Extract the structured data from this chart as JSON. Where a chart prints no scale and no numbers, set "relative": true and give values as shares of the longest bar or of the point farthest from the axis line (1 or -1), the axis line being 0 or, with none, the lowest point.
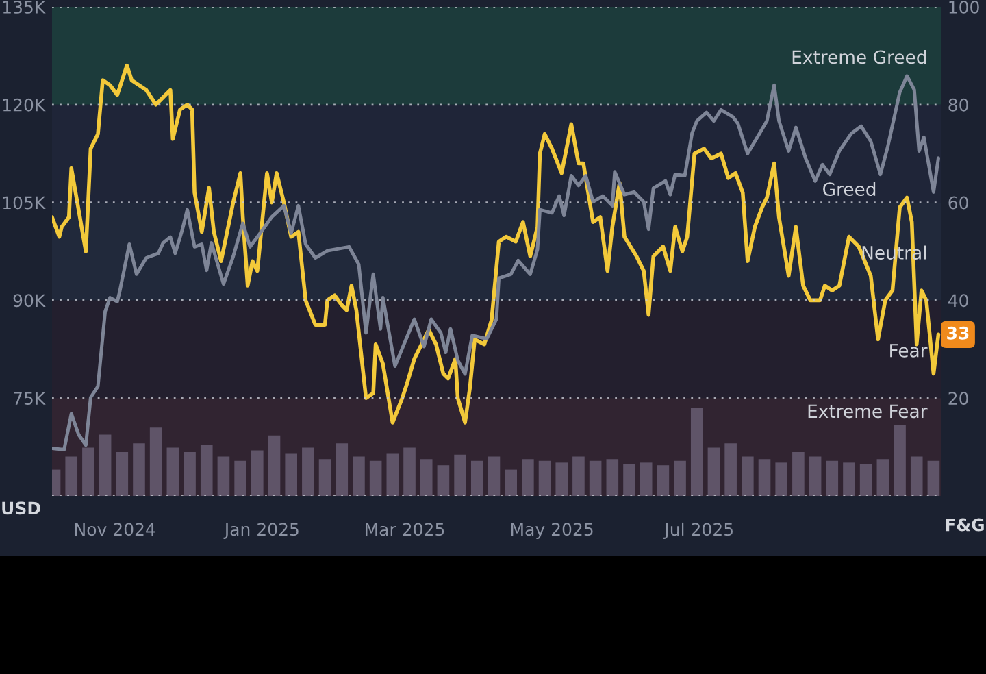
{
  "chart_data": [
    {
      "type": "line",
      "xlim": [
        "2024-10-06",
        "2025-10-09"
      ],
      "xticks": [
        {
          "value": "2024-11-01",
          "label": "Nov 2024"
        },
        {
          "value": "2025-01-01",
          "label": "Jan 2025"
        },
        {
          "value": "2025-03-01",
          "label": "Mar 2025"
        },
        {
          "value": "2025-05-01",
          "label": "May 2025"
        },
        {
          "value": "2025-07-01",
          "label": "Jul 2025"
        }
      ],
      "ylabel": "USD",
      "y2label": "F&G",
      "ylim": [
        60000,
        135000
      ],
      "yticks": [
        {
          "value": 60000,
          "label": null
        },
        {
          "value": 75000,
          "label": "75K"
        },
        {
          "value": 90000,
          "label": "90K"
        },
        {
          "value": 105000,
          "label": "105K"
        },
        {
          "value": 120000,
          "label": "120K"
        },
        {
          "value": 135000,
          "label": "135K"
        }
      ],
      "y2lim": [
        0,
        100
      ],
      "y2ticks": [
        {
          "value": 0,
          "label": null
        },
        20,
        40,
        60,
        80,
        100
      ],
      "grid": "y",
      "bands": [
        {
          "axis": "y2",
          "from": 80,
          "to": 100,
          "label": "Extreme Greed",
          "color": "#1c3f3d"
        },
        {
          "axis": "y2",
          "from": 60,
          "to": 80,
          "label": "Greed",
          "color": "#20263a"
        },
        {
          "axis": "y2",
          "from": 40,
          "to": 60,
          "label": "Neutral",
          "color": "#222a3d"
        },
        {
          "axis": "y2",
          "from": 20,
          "to": 40,
          "label": "Fear",
          "color": "#251f2e"
        },
        {
          "axis": "y2",
          "from": 0,
          "to": 20,
          "label": "Extreme Fear",
          "color": "#352431"
        }
      ],
      "series": [
        {
          "color": "#7e8597",
          "x": [
            "2024-10-06",
            "2024-10-11",
            "2024-10-14",
            "2024-10-17",
            "2024-10-20",
            "2024-10-22",
            "2024-10-25",
            "2024-10-28",
            "2024-10-30",
            "2024-11-02",
            "2024-11-03",
            "2024-11-07",
            "2024-11-10",
            "2024-11-14",
            "2024-11-19",
            "2024-11-21",
            "2024-11-24",
            "2024-11-26",
            "2024-11-29",
            "2024-12-01",
            "2024-12-04",
            "2024-12-07",
            "2024-12-09",
            "2024-12-11",
            "2024-12-16",
            "2024-12-20",
            "2024-12-24",
            "2024-12-27",
            "2025-01-01",
            "2025-01-05",
            "2025-01-10",
            "2025-01-13",
            "2025-01-16",
            "2025-01-19",
            "2025-01-23",
            "2025-01-28",
            "2025-02-06",
            "2025-02-10",
            "2025-02-13",
            "2025-02-16",
            "2025-02-19",
            "2025-02-20",
            "2025-02-25",
            "2025-03-01",
            "2025-03-05",
            "2025-03-09",
            "2025-03-12",
            "2025-03-16",
            "2025-03-18",
            "2025-03-20",
            "2025-03-23",
            "2025-03-26",
            "2025-03-29",
            "2025-04-04",
            "2025-04-08",
            "2025-04-09",
            "2025-04-14",
            "2025-04-17",
            "2025-04-22",
            "2025-04-25",
            "2025-04-26",
            "2025-05-01",
            "2025-05-04",
            "2025-05-06",
            "2025-05-09",
            "2025-05-12",
            "2025-05-15",
            "2025-05-18",
            "2025-05-22",
            "2025-05-26",
            "2025-05-27",
            "2025-05-31",
            "2025-06-04",
            "2025-06-08",
            "2025-06-10",
            "2025-06-12",
            "2025-06-17",
            "2025-06-19",
            "2025-06-21",
            "2025-06-25",
            "2025-06-28",
            "2025-06-30",
            "2025-07-04",
            "2025-07-07",
            "2025-07-10",
            "2025-07-15",
            "2025-07-17",
            "2025-07-21",
            "2025-07-25",
            "2025-07-29",
            "2025-08-01",
            "2025-08-03",
            "2025-08-07",
            "2025-08-10",
            "2025-08-14",
            "2025-08-18",
            "2025-08-21",
            "2025-08-24",
            "2025-08-28",
            "2025-09-02",
            "2025-09-06",
            "2025-09-10",
            "2025-09-14",
            "2025-09-17",
            "2025-09-22",
            "2025-09-25",
            "2025-09-28",
            "2025-09-30",
            "2025-10-02",
            "2025-10-06",
            "2025-10-08"
          ],
          "values": [
            67300,
            67100,
            72600,
            69400,
            67800,
            75100,
            76800,
            88300,
            90400,
            89800,
            91300,
            98600,
            94000,
            96500,
            97200,
            98800,
            99700,
            97200,
            100900,
            103900,
            98200,
            98600,
            94600,
            98800,
            92500,
            96700,
            101800,
            98200,
            100700,
            102800,
            104500,
            100300,
            104500,
            98600,
            96500,
            97600,
            98200,
            95500,
            85000,
            94000,
            85600,
            90400,
            79900,
            83500,
            87100,
            82900,
            87100,
            85000,
            82000,
            85600,
            80800,
            78700,
            84600,
            84100,
            87100,
            93400,
            94000,
            96100,
            94000,
            97800,
            103900,
            103400,
            106000,
            103000,
            109100,
            107600,
            109100,
            105100,
            106000,
            104500,
            109700,
            106200,
            106600,
            105100,
            100900,
            107200,
            108300,
            106200,
            109300,
            109100,
            115600,
            117500,
            118800,
            117500,
            119200,
            118100,
            117100,
            112500,
            115000,
            117500,
            123000,
            117500,
            112900,
            116500,
            111800,
            108300,
            110800,
            109300,
            112900,
            115600,
            116700,
            114400,
            109300,
            113500,
            121900,
            124400,
            122300,
            112900,
            115000,
            106600,
            111800
          ]
        },
        {
          "axis": "y2",
          "color": "#f3c93a",
          "x": [
            "2024-10-06",
            "2024-10-09",
            "2024-10-10",
            "2024-10-13",
            "2024-10-14",
            "2024-10-20",
            "2024-10-22",
            "2024-10-25",
            "2024-10-27",
            "2024-10-30",
            "2024-11-02",
            "2024-11-06",
            "2024-11-08",
            "2024-11-11",
            "2024-11-14",
            "2024-11-18",
            "2024-11-22",
            "2024-11-24",
            "2024-11-25",
            "2024-11-28",
            "2024-12-01",
            "2024-12-03",
            "2024-12-04",
            "2024-12-07",
            "2024-12-10",
            "2024-12-12",
            "2024-12-15",
            "2024-12-20",
            "2024-12-23",
            "2024-12-24",
            "2024-12-26",
            "2024-12-28",
            "2024-12-30",
            "2025-01-03",
            "2025-01-05",
            "2025-01-07",
            "2025-01-10",
            "2025-01-13",
            "2025-01-16",
            "2025-01-19",
            "2025-01-23",
            "2025-01-27",
            "2025-01-28",
            "2025-01-31",
            "2025-02-03",
            "2025-02-05",
            "2025-02-07",
            "2025-02-09",
            "2025-02-13",
            "2025-02-16",
            "2025-02-17",
            "2025-02-20",
            "2025-02-24",
            "2025-02-28",
            "2025-03-02",
            "2025-03-05",
            "2025-03-08",
            "2025-03-11",
            "2025-03-14",
            "2025-03-17",
            "2025-03-19",
            "2025-03-22",
            "2025-03-23",
            "2025-03-26",
            "2025-03-28",
            "2025-03-30",
            "2025-04-03",
            "2025-04-06",
            "2025-04-09",
            "2025-04-12",
            "2025-04-16",
            "2025-04-19",
            "2025-04-22",
            "2025-04-25",
            "2025-04-26",
            "2025-04-28",
            "2025-05-01",
            "2025-05-05",
            "2025-05-09",
            "2025-05-12",
            "2025-05-14",
            "2025-05-18",
            "2025-05-21",
            "2025-05-24",
            "2025-05-26",
            "2025-05-29",
            "2025-05-31",
            "2025-06-05",
            "2025-06-08",
            "2025-06-10",
            "2025-06-12",
            "2025-06-16",
            "2025-06-19",
            "2025-06-21",
            "2025-06-24",
            "2025-06-26",
            "2025-06-29",
            "2025-07-03",
            "2025-07-06",
            "2025-07-10",
            "2025-07-13",
            "2025-07-16",
            "2025-07-19",
            "2025-07-21",
            "2025-07-24",
            "2025-07-27",
            "2025-07-29",
            "2025-08-01",
            "2025-08-03",
            "2025-08-07",
            "2025-08-10",
            "2025-08-13",
            "2025-08-16",
            "2025-08-20",
            "2025-08-22",
            "2025-08-25",
            "2025-08-28",
            "2025-09-01",
            "2025-09-05",
            "2025-09-10",
            "2025-09-13",
            "2025-09-16",
            "2025-09-19",
            "2025-09-22",
            "2025-09-25",
            "2025-09-27",
            "2025-09-29",
            "2025-10-01",
            "2025-10-03",
            "2025-10-06",
            "2025-10-08"
          ],
          "value_labels": [
            null,
            null,
            null,
            null,
            null,
            null,
            null,
            null,
            null,
            null,
            null,
            null,
            null,
            null,
            null,
            null,
            null,
            null,
            null,
            null,
            null,
            null,
            null,
            null,
            null,
            null,
            null,
            null,
            null,
            null,
            null,
            null,
            null,
            null,
            null,
            null,
            null,
            null,
            null,
            null,
            null,
            null,
            null,
            null,
            null,
            null,
            null,
            null,
            null,
            null,
            null,
            null,
            null,
            null,
            null,
            null,
            null,
            null,
            null,
            null,
            null,
            null,
            null,
            null,
            null,
            null,
            null,
            null,
            null,
            null,
            null,
            null,
            null,
            null,
            null,
            null,
            null,
            null,
            null,
            null,
            null,
            null,
            null,
            null,
            null,
            null,
            null,
            null,
            null,
            null,
            null,
            null,
            null,
            null,
            null,
            null,
            null,
            null,
            null,
            null,
            null,
            null,
            null,
            null,
            null,
            null,
            null,
            null,
            null,
            null,
            null,
            null,
            null,
            null,
            null,
            null,
            null,
            null,
            null,
            null,
            null,
            null,
            null,
            null,
            null,
            null,
            null,
            null,
            null,
            null,
            "33"
          ],
          "values": [
            57,
            53,
            55,
            57,
            67,
            50,
            71,
            74,
            85,
            84,
            82,
            88,
            85,
            84,
            83,
            80,
            82,
            83,
            73,
            79,
            80,
            79,
            62,
            54,
            63,
            54,
            48,
            60,
            66,
            57,
            43,
            48,
            46,
            66,
            60,
            66,
            60,
            53,
            54,
            40,
            35,
            35,
            40,
            41,
            39,
            38,
            43,
            38,
            20,
            21,
            31,
            27,
            15,
            20,
            23,
            28,
            31,
            34,
            31,
            25,
            24,
            28,
            20,
            15,
            22,
            32,
            31,
            36,
            52,
            53,
            52,
            56,
            49,
            55,
            70,
            74,
            71,
            66,
            76,
            68,
            68,
            56,
            57,
            46,
            55,
            64,
            53,
            49,
            46,
            37,
            49,
            51,
            46,
            55,
            50,
            53,
            70,
            71,
            69,
            70,
            65,
            66,
            62,
            48,
            55,
            59,
            61,
            68,
            57,
            45,
            55,
            43,
            40,
            40,
            43,
            42,
            43,
            53,
            51,
            45,
            32,
            40,
            42,
            59,
            61,
            56,
            31,
            42,
            40,
            25,
            33
          ],
          "line_style": "solid"
        }
      ]
    },
    {
      "type": "bar",
      "relative": true,
      "tick_labels": false,
      "color": "#5f5468",
      "xlim": [
        "2024-10-06",
        "2025-10-09"
      ],
      "xticks": [
        "2024-11-01",
        "2025-01-01",
        "2025-03-01",
        "2025-05-01",
        "2025-07-01"
      ],
      "x": [
        "2024-10-07",
        "2024-10-14",
        "2024-10-21",
        "2024-10-28",
        "2024-11-04",
        "2024-11-11",
        "2024-11-18",
        "2024-11-25",
        "2024-12-02",
        "2024-12-09",
        "2024-12-16",
        "2024-12-23",
        "2024-12-30",
        "2025-01-06",
        "2025-01-13",
        "2025-01-20",
        "2025-01-27",
        "2025-02-03",
        "2025-02-10",
        "2025-02-17",
        "2025-02-24",
        "2025-03-03",
        "2025-03-10",
        "2025-03-17",
        "2025-03-24",
        "2025-03-31",
        "2025-04-07",
        "2025-04-14",
        "2025-04-21",
        "2025-04-28",
        "2025-05-05",
        "2025-05-12",
        "2025-05-19",
        "2025-05-26",
        "2025-06-02",
        "2025-06-09",
        "2025-06-16",
        "2025-06-23",
        "2025-06-30",
        "2025-07-07",
        "2025-07-14",
        "2025-07-21",
        "2025-07-28",
        "2025-08-04",
        "2025-08-11",
        "2025-08-18",
        "2025-08-25",
        "2025-09-01",
        "2025-09-08",
        "2025-09-15",
        "2025-09-22",
        "2025-09-29",
        "2025-10-06"
      ],
      "values": [
        0.3,
        0.45,
        0.55,
        0.7,
        0.5,
        0.6,
        0.78,
        0.55,
        0.5,
        0.58,
        0.45,
        0.4,
        0.52,
        0.69,
        0.48,
        0.55,
        0.42,
        0.6,
        0.45,
        0.4,
        0.48,
        0.55,
        0.42,
        0.35,
        0.47,
        0.4,
        0.45,
        0.3,
        0.42,
        0.4,
        0.38,
        0.45,
        0.4,
        0.42,
        0.36,
        0.38,
        0.35,
        0.4,
        1.0,
        0.55,
        0.6,
        0.45,
        0.42,
        0.38,
        0.5,
        0.45,
        0.4,
        0.38,
        0.36,
        0.42,
        0.81,
        0.45,
        0.4
      ]
    }
  ]
}
